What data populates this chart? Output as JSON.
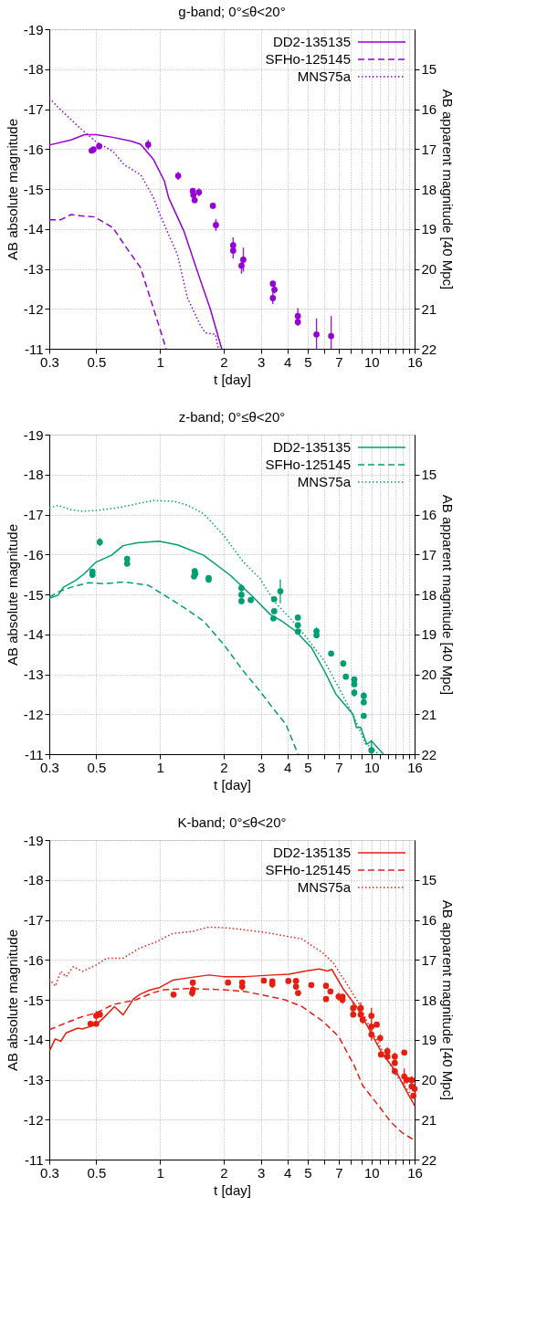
{
  "chart_data": [
    {
      "type": "line",
      "title": "g-band; 0°≤θ<20°",
      "xlabel": "t [day]",
      "ylabel": "AB absolute magnitude",
      "y2label": "AB apparent magnitude [40 Mpc]",
      "log": "x",
      "grid": true,
      "legend": "top right",
      "xlim": [
        0.3,
        16
      ],
      "xticks": [
        0.3,
        0.5,
        1,
        2,
        3,
        4,
        5,
        {
          "value": 6,
          "label": null
        },
        7,
        {
          "value": 8,
          "label": null
        },
        {
          "value": 9,
          "label": null
        },
        10,
        {
          "value": 11,
          "label": null
        },
        {
          "value": 12,
          "label": null
        },
        {
          "value": 13,
          "label": null
        },
        {
          "value": 14,
          "label": null
        },
        {
          "value": 15,
          "label": null
        },
        16
      ],
      "ylim": [
        -11,
        -19
      ],
      "yticks": [
        -19,
        -18,
        -17,
        -16,
        -15,
        -14,
        -13,
        -12,
        -11
      ],
      "y2lim": [
        22,
        14
      ],
      "y2ticks": [
        15,
        16,
        17,
        18,
        19,
        20,
        21,
        22
      ],
      "series": [
        {
          "name": "DD2-135135",
          "type": "line",
          "line_style": "solid",
          "color": "#9400d3",
          "x": [
            0.3,
            0.38,
            0.44,
            0.5,
            0.59,
            0.73,
            0.81,
            0.93,
            1.05,
            1.1,
            1.3,
            1.53,
            1.73,
            1.96
          ],
          "values": [
            -16.1,
            -16.23,
            -16.36,
            -16.36,
            -16.3,
            -16.2,
            -16.12,
            -15.75,
            -15.2,
            -14.78,
            -13.94,
            -12.82,
            -12.0,
            -11.0
          ]
        },
        {
          "name": "SFHo-125145",
          "type": "line",
          "line_style": "dashed",
          "color": "#9400d3",
          "x": [
            0.3,
            0.34,
            0.38,
            0.42,
            0.49,
            0.6,
            0.68,
            0.81,
            0.93,
            1.07
          ],
          "values": [
            -14.23,
            -14.23,
            -14.36,
            -14.33,
            -14.3,
            -14.03,
            -13.6,
            -13.03,
            -12.03,
            -11.0
          ]
        },
        {
          "name": "MNS75a",
          "type": "line",
          "line_style": "dotted",
          "color": "#9400d3",
          "x": [
            0.3,
            0.34,
            0.42,
            0.5,
            0.6,
            0.68,
            0.81,
            0.93,
            1.0,
            1.21,
            1.35,
            1.55,
            1.64,
            1.83,
            1.89
          ],
          "values": [
            -17.27,
            -16.98,
            -16.52,
            -16.18,
            -15.94,
            -15.6,
            -15.36,
            -14.8,
            -14.36,
            -13.36,
            -12.27,
            -11.6,
            -11.4,
            -11.36,
            -11.0
          ]
        },
        {
          "type": "scatter",
          "marker": "circle",
          "color": "#9400d3",
          "x": [
            0.476,
            0.485,
            0.516,
            0.88,
            1.22,
            1.43,
            1.44,
            1.46,
            1.53,
            1.78,
            1.84,
            2.22,
            2.22,
            2.43,
            2.48,
            3.42,
            3.48,
            3.42,
            4.49,
            4.49,
            5.5,
            6.45
          ],
          "values": [
            -15.96,
            -15.99,
            -16.07,
            -16.11,
            -15.33,
            -14.95,
            -14.85,
            -14.72,
            -14.92,
            -14.58,
            -14.1,
            -13.59,
            -13.46,
            -13.08,
            -13.23,
            -12.63,
            -12.48,
            -12.27,
            -11.82,
            -11.67,
            -11.36,
            -11.32
          ],
          "errors": [
            0.03,
            0.03,
            0.05,
            0.12,
            0.1,
            0.06,
            0.06,
            0.06,
            0.1,
            0.05,
            0.15,
            0.2,
            0.2,
            0.2,
            0.3,
            0.05,
            0.1,
            0.15,
            0.2,
            0.1,
            [
              -11.0,
              -11.76
            ],
            [
              -11.0,
              -11.82
            ]
          ]
        }
      ]
    },
    {
      "type": "line",
      "title": "z-band; 0°≤θ<20°",
      "xlabel": "t [day]",
      "ylabel": "AB absolute magnitude",
      "y2label": "AB apparent magnitude [40 Mpc]",
      "log": "x",
      "grid": true,
      "legend": "top right",
      "xlim": [
        0.3,
        16
      ],
      "xticks": [
        0.3,
        0.5,
        1,
        2,
        3,
        4,
        5,
        {
          "value": 6,
          "label": null
        },
        7,
        {
          "value": 8,
          "label": null
        },
        {
          "value": 9,
          "label": null
        },
        10,
        {
          "value": 11,
          "label": null
        },
        {
          "value": 12,
          "label": null
        },
        {
          "value": 13,
          "label": null
        },
        {
          "value": 14,
          "label": null
        },
        {
          "value": 15,
          "label": null
        },
        16
      ],
      "ylim": [
        -11,
        -19
      ],
      "yticks": [
        -19,
        -18,
        -17,
        -16,
        -15,
        -14,
        -13,
        -12,
        -11
      ],
      "y2lim": [
        22,
        14
      ],
      "y2ticks": [
        15,
        16,
        17,
        18,
        19,
        20,
        21,
        22
      ],
      "series": [
        {
          "name": "DD2-135135",
          "type": "line",
          "line_style": "solid",
          "color": "#009e73",
          "x": [
            0.3,
            0.33,
            0.35,
            0.4,
            0.44,
            0.5,
            0.59,
            0.67,
            0.78,
            0.99,
            1.21,
            1.61,
            2.15,
            2.76,
            3.32,
            3.78,
            4.38,
            5.2,
            6.0,
            6.8,
            8.17,
            8.5,
            8.9,
            9.5,
            10.0,
            11.4
          ],
          "values": [
            -14.9,
            -14.98,
            -15.18,
            -15.35,
            -15.52,
            -15.81,
            -15.98,
            -16.22,
            -16.29,
            -16.33,
            -16.24,
            -15.98,
            -15.48,
            -14.93,
            -14.5,
            -14.33,
            -14.08,
            -13.67,
            -13.08,
            -12.5,
            -12.0,
            -11.67,
            -11.67,
            -11.25,
            -11.33,
            -11.0
          ]
        },
        {
          "name": "SFHo-125145",
          "type": "line",
          "line_style": "dashed",
          "color": "#009e73",
          "x": [
            0.3,
            0.33,
            0.38,
            0.46,
            0.54,
            0.68,
            0.88,
            1.05,
            1.3,
            1.61,
            2.0,
            2.48,
            2.97,
            3.4,
            3.94,
            4.5
          ],
          "values": [
            -14.93,
            -15.06,
            -15.18,
            -15.29,
            -15.27,
            -15.31,
            -15.23,
            -14.98,
            -14.67,
            -14.33,
            -13.75,
            -13.08,
            -12.58,
            -12.17,
            -11.75,
            -11.0
          ]
        },
        {
          "name": "MNS75a",
          "type": "line",
          "line_style": "dotted",
          "color": "#009e73",
          "x": [
            0.3,
            0.33,
            0.38,
            0.43,
            0.5,
            0.65,
            0.78,
            0.93,
            1.17,
            1.35,
            1.61,
            2.0,
            2.48,
            2.97,
            3.5,
            4.1,
            4.8,
            6.0,
            7.0,
            8.3,
            9.4,
            10.0,
            10.8
          ],
          "values": [
            -17.17,
            -17.23,
            -17.12,
            -17.08,
            -17.1,
            -17.18,
            -17.27,
            -17.35,
            -17.33,
            -17.23,
            -17.02,
            -16.48,
            -15.81,
            -15.4,
            -14.8,
            -14.42,
            -14.0,
            -13.33,
            -12.67,
            -11.92,
            -11.25,
            -11.17,
            -11.0
          ]
        },
        {
          "type": "scatter",
          "marker": "circle",
          "color": "#009e73",
          "x": [
            0.48,
            0.48,
            0.52,
            0.7,
            0.7,
            1.45,
            1.46,
            1.47,
            1.7,
            1.7,
            2.43,
            2.43,
            2.43,
            2.69,
            3.47,
            3.71,
            3.47,
            3.44,
            4.49,
            4.49,
            4.49,
            5.5,
            5.5,
            6.45,
            7.36,
            7.57,
            8.3,
            8.3,
            8.3,
            9.2,
            9.2,
            9.2,
            10.0
          ],
          "values": [
            -15.49,
            -15.57,
            -16.31,
            -15.77,
            -15.89,
            -15.45,
            -15.58,
            -15.52,
            -15.41,
            -15.37,
            -15.16,
            -14.99,
            -14.83,
            -14.86,
            -14.88,
            -15.08,
            -14.58,
            -14.4,
            -14.42,
            -14.23,
            -14.07,
            -14.08,
            -13.98,
            -13.52,
            -13.27,
            -12.94,
            -12.87,
            -12.75,
            -12.54,
            -12.46,
            -12.3,
            -11.96,
            -11.1
          ],
          "errors": [
            0.04,
            0.04,
            0.1,
            0.04,
            0.07,
            0.05,
            0.08,
            0.05,
            0.05,
            0.05,
            0.1,
            0.05,
            0.05,
            0.05,
            0.05,
            0.3,
            0.05,
            0.05,
            0.05,
            0.05,
            0.05,
            0.1,
            0.05,
            0.05,
            0.08,
            0.05,
            0.05,
            0.05,
            0.1,
            0.1,
            0.05,
            0.05,
            [
              -11.0,
              -11.35
            ]
          ]
        }
      ]
    },
    {
      "type": "line",
      "title": "K-band; 0°≤θ<20°",
      "xlabel": "t [day]",
      "ylabel": "AB absolute magnitude",
      "y2label": "AB apparent magnitude [40 Mpc]",
      "log": "x",
      "grid": true,
      "legend": "top right",
      "xlim": [
        0.3,
        16
      ],
      "xticks": [
        0.3,
        0.5,
        1,
        2,
        3,
        4,
        5,
        {
          "value": 6,
          "label": null
        },
        7,
        {
          "value": 8,
          "label": null
        },
        {
          "value": 9,
          "label": null
        },
        10,
        {
          "value": 11,
          "label": null
        },
        {
          "value": 12,
          "label": null
        },
        {
          "value": 13,
          "label": null
        },
        {
          "value": 14,
          "label": null
        },
        {
          "value": 15,
          "label": null
        },
        16
      ],
      "ylim": [
        -11,
        -19
      ],
      "yticks": [
        -19,
        -18,
        -17,
        -16,
        -15,
        -14,
        -13,
        -12,
        -11
      ],
      "y2lim": [
        22,
        14
      ],
      "y2ticks": [
        15,
        16,
        17,
        18,
        19,
        20,
        21,
        22
      ],
      "series": [
        {
          "name": "DD2-135135",
          "type": "line",
          "line_style": "solid",
          "color": "#e51e10",
          "x": [
            0.3,
            0.32,
            0.34,
            0.36,
            0.41,
            0.43,
            0.5,
            0.54,
            0.61,
            0.67,
            0.75,
            0.8,
            0.89,
            1.0,
            1.15,
            1.32,
            1.7,
            2.0,
            2.54,
            3.4,
            4.07,
            4.9,
            5.66,
            6.2,
            6.5,
            7.4,
            8.5,
            9.6,
            11.2,
            13.2,
            14.8,
            16
          ],
          "values": [
            -13.71,
            -14.02,
            -13.96,
            -14.17,
            -14.29,
            -14.27,
            -14.38,
            -14.54,
            -14.83,
            -14.62,
            -15.02,
            -15.13,
            -15.24,
            -15.31,
            -15.49,
            -15.54,
            -15.62,
            -15.58,
            -15.58,
            -15.62,
            -15.64,
            -15.72,
            -15.77,
            -15.72,
            -15.76,
            -15.25,
            -14.83,
            -14.33,
            -13.67,
            -13.17,
            -12.67,
            -12.35
          ]
        },
        {
          "name": "SFHo-125145",
          "type": "line",
          "line_style": "dashed",
          "color": "#e51e10",
          "x": [
            0.3,
            0.36,
            0.43,
            0.5,
            0.6,
            0.77,
            0.92,
            1.05,
            1.35,
            1.6,
            2.0,
            2.5,
            3.0,
            3.6,
            3.9,
            4.7,
            5.9,
            7.0,
            8.3,
            9.1,
            10.8,
            12.4,
            14.0,
            16
          ],
          "values": [
            -14.25,
            -14.42,
            -14.58,
            -14.67,
            -14.88,
            -15.0,
            -15.17,
            -15.25,
            -15.28,
            -15.27,
            -15.25,
            -15.21,
            -15.13,
            -15.04,
            -15.0,
            -14.83,
            -14.46,
            -14.08,
            -13.35,
            -12.85,
            -12.35,
            -11.93,
            -11.67,
            -11.48
          ]
        },
        {
          "name": "MNS75a",
          "type": "line",
          "line_style": "dotted",
          "color": "#e51e10",
          "x": [
            0.3,
            0.32,
            0.34,
            0.36,
            0.39,
            0.43,
            0.5,
            0.56,
            0.67,
            0.8,
            0.96,
            1.15,
            1.42,
            1.7,
            2.1,
            2.6,
            3.4,
            4.7,
            5.9,
            6.6,
            7.6,
            8.7,
            9.6,
            11.2,
            13.2,
            14.8,
            16
          ],
          "values": [
            -15.52,
            -15.34,
            -15.71,
            -15.58,
            -15.83,
            -15.71,
            -15.87,
            -16.04,
            -16.04,
            -16.29,
            -16.45,
            -16.66,
            -16.71,
            -16.82,
            -16.8,
            -16.74,
            -16.66,
            -16.52,
            -16.17,
            -15.92,
            -15.42,
            -14.92,
            -14.42,
            -13.75,
            -13.09,
            -12.75,
            -12.5
          ]
        },
        {
          "type": "scatter",
          "marker": "circle",
          "color": "#e51e10",
          "x": [
            0.47,
            0.5,
            0.5,
            0.52,
            1.16,
            1.43,
            1.43,
            1.42,
            2.1,
            2.45,
            2.45,
            3.1,
            3.4,
            3.4,
            4.05,
            4.4,
            4.4,
            4.5,
            5.2,
            6.1,
            6.1,
            6.4,
            7.0,
            7.3,
            7.3,
            8.2,
            8.2,
            8.9,
            8.9,
            9.1,
            10.0,
            10.0,
            10.0,
            10.6,
            11.0,
            11.1,
            11.9,
            11.9,
            12.9,
            12.9,
            12.9,
            14.3,
            14.3,
            14.7,
            15.5,
            15.5,
            15.8,
            16
          ],
          "values": [
            -14.4,
            -14.4,
            -14.6,
            -14.63,
            -15.13,
            -15.43,
            -15.25,
            -15.17,
            -15.43,
            -15.43,
            -15.33,
            -15.48,
            -15.46,
            -15.39,
            -15.47,
            -15.47,
            -15.33,
            -15.17,
            -15.37,
            -15.35,
            -15.02,
            -15.21,
            -15.08,
            -15.08,
            -15.0,
            -14.79,
            -14.63,
            -14.79,
            -14.63,
            -14.5,
            -14.6,
            -14.33,
            -14.13,
            -14.38,
            -14.04,
            -13.63,
            -13.71,
            -13.58,
            -13.58,
            -13.42,
            -13.21,
            -13.68,
            -13.08,
            -13.0,
            -12.99,
            -12.83,
            -12.6,
            -12.77
          ],
          "errors": [
            0.04,
            0.05,
            0.12,
            0.05,
            0.05,
            0.05,
            0.15,
            0.1,
            0.05,
            0.05,
            0.1,
            0.05,
            0.05,
            0.1,
            0.05,
            0.05,
            0.05,
            0.05,
            0.05,
            0.05,
            0.05,
            0.05,
            0.1,
            0.05,
            0.1,
            0.15,
            0.05,
            0.15,
            0.05,
            0.1,
            0.2,
            0.05,
            0.15,
            0.05,
            0.1,
            0.05,
            0.1,
            0.05,
            0.1,
            0.05,
            0.05,
            0.05,
            0.2,
            0.1,
            0.1,
            0.05,
            0.05,
            0.05
          ]
        }
      ]
    }
  ]
}
